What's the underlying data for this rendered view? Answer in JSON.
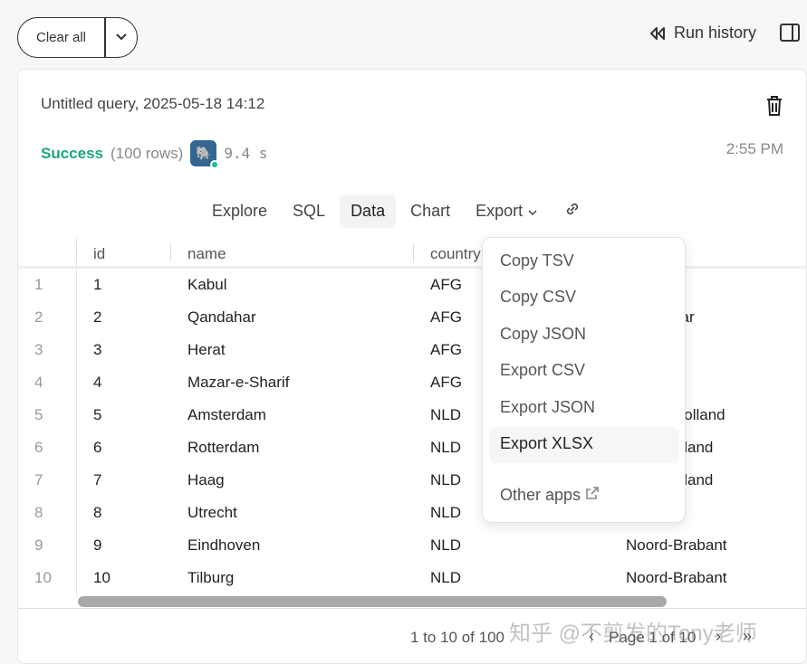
{
  "toolbar": {
    "clear_all": "Clear all",
    "run_history": "Run history"
  },
  "query": {
    "title": "Untitled query, 2025-05-18 14:12",
    "status": "Success",
    "rows": "(100 rows)",
    "duration": "9.4 s",
    "time": "2:55 PM"
  },
  "tabs": [
    {
      "label": "Explore"
    },
    {
      "label": "SQL"
    },
    {
      "label": "Data",
      "active": true
    },
    {
      "label": "Chart"
    },
    {
      "label": "Export"
    }
  ],
  "columns": [
    "id",
    "name",
    "country"
  ],
  "rows": [
    [
      "1",
      "1",
      "Kabul",
      "AFG",
      ""
    ],
    [
      "2",
      "2",
      "Qandahar",
      "AFG",
      "Qandahar"
    ],
    [
      "3",
      "3",
      "Herat",
      "AFG",
      ""
    ],
    [
      "4",
      "4",
      "Mazar-e-Sharif",
      "AFG",
      ""
    ],
    [
      "5",
      "5",
      "Amsterdam",
      "NLD",
      "Noord-Holland"
    ],
    [
      "6",
      "6",
      "Rotterdam",
      "NLD",
      "Zuid-Holland"
    ],
    [
      "7",
      "7",
      "Haag",
      "NLD",
      "Zuid-Holland"
    ],
    [
      "8",
      "8",
      "Utrecht",
      "NLD",
      ""
    ],
    [
      "9",
      "9",
      "Eindhoven",
      "NLD",
      "Noord-Brabant"
    ],
    [
      "10",
      "10",
      "Tilburg",
      "NLD",
      "Noord-Brabant"
    ]
  ],
  "footer": {
    "count": "1 to 10 of 100",
    "page": "Page 1 of 10"
  },
  "export_menu": [
    "Copy TSV",
    "Copy CSV",
    "Copy JSON",
    "Export CSV",
    "Export JSON",
    "Export XLSX"
  ],
  "other_apps": "Other apps",
  "watermark": "知乎 @不剪发的Tony老师",
  "colors": {
    "success": "#1aa782",
    "postgres": "#336791"
  }
}
